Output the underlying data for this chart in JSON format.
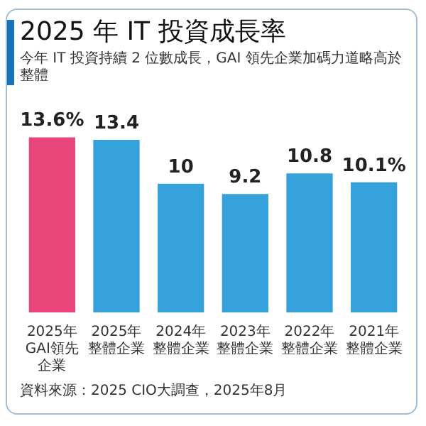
{
  "chart_data": {
    "type": "bar",
    "title": "2025 年 IT 投資成長率",
    "subtitle": "今年 IT 投資持續 2 位數成長，GAI 領先企業加碼力道略高於整體",
    "categories": [
      "2025年GAI領先企業",
      "2025年整體企業",
      "2024年整體企業",
      "2023年整體企業",
      "2022年整體企業",
      "2021年整體企業"
    ],
    "values": [
      13.6,
      13.4,
      10,
      9.2,
      10.8,
      10.1
    ],
    "value_labels": [
      "13.6%",
      "13.4",
      "10",
      "9.2",
      "10.8",
      "10.1%"
    ],
    "colors": [
      "#e8457a",
      "#35a2dc",
      "#35a2dc",
      "#35a2dc",
      "#35a2dc",
      "#35a2dc"
    ],
    "annotations": [
      "資料來源：2025 CIO大調查，2025年8月"
    ]
  }
}
